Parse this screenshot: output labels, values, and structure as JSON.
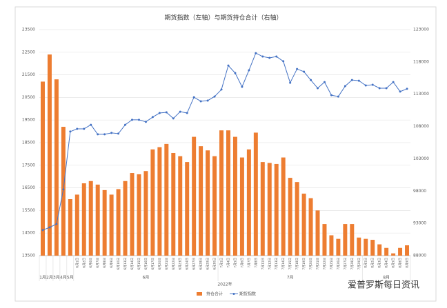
{
  "chart_data": {
    "type": "combo",
    "title": "期货指数（左轴）与期货持仓合计（右轴）",
    "categories": [
      null,
      null,
      null,
      null,
      null,
      "6月1日",
      "6月2日",
      "6月6日",
      "6月7日",
      "6月8日",
      "6月9日",
      "6月10日",
      "6月13日",
      "6月14日",
      "6月15日",
      "6月16日",
      "6月17日",
      "6月20日",
      "6月21日",
      "6月22日",
      "6月23日",
      "6月24日",
      "6月27日",
      "6月28日",
      "6月29日",
      "6月30日",
      "7月1日",
      "7月4日",
      "7月5日",
      "7月6日",
      "7月7日",
      "7月8日",
      "7月11日",
      "7月12日",
      "7月13日",
      "7月14日",
      "7月15日",
      "7月18日",
      "7月19日",
      "7月20日",
      "7月21日",
      "7月22日",
      "7月25日",
      "7月26日",
      "7月27日",
      "7月28日",
      "7月29日",
      "8月1日",
      "8月2日",
      "8月3日",
      "8月4日",
      "8月5日",
      "8月8日",
      "8月9日"
    ],
    "x_groups": [
      {
        "label": "1月",
        "count": 1
      },
      {
        "label": "2月",
        "count": 1
      },
      {
        "label": "3月",
        "count": 1
      },
      {
        "label": "4月",
        "count": 1
      },
      {
        "label": "5月",
        "count": 1
      },
      {
        "label": "6月",
        "count": 21
      },
      {
        "label": "7月",
        "count": 21
      },
      {
        "label": "8月",
        "count": 7
      }
    ],
    "x_supergroup": "2022年",
    "series": [
      {
        "name": "持仓合计",
        "type": "bar",
        "color": "#ed7d31",
        "axis": "y2",
        "values": [
          114950,
          119150,
          115300,
          107950,
          96750,
          97450,
          99200,
          99550,
          99000,
          98150,
          97450,
          98300,
          99550,
          100800,
          100600,
          101100,
          104450,
          104800,
          105300,
          103900,
          103400,
          102500,
          106400,
          104950,
          104300,
          103400,
          107400,
          107400,
          106400,
          103200,
          104450,
          107050,
          102500,
          102350,
          102200,
          103200,
          100050,
          99400,
          97600,
          96900,
          95000,
          92900,
          91150,
          90600,
          92900,
          92900,
          90800,
          90600,
          90450,
          89750,
          89200,
          88350,
          89200,
          89600
        ]
      },
      {
        "name": "期货指数",
        "type": "line",
        "color": "#4472c4",
        "values": [
          14630,
          14750,
          14900,
          16430,
          18990,
          19110,
          19110,
          19290,
          18870,
          18870,
          18930,
          18900,
          19290,
          19510,
          19510,
          19420,
          19630,
          19810,
          19840,
          19570,
          19870,
          19810,
          20510,
          20330,
          20360,
          20540,
          20850,
          21910,
          21580,
          20970,
          21700,
          22460,
          22310,
          22250,
          22310,
          22100,
          21150,
          21760,
          21640,
          21270,
          20910,
          21180,
          20600,
          20540,
          21000,
          21270,
          21240,
          21030,
          21060,
          20910,
          20910,
          21180,
          20760,
          20880
        ]
      }
    ],
    "ylim": [
      13500,
      23500
    ],
    "yticks": [
      13500,
      14500,
      15500,
      16500,
      17500,
      18500,
      19500,
      20500,
      21500,
      22500,
      23500
    ],
    "y2lim": [
      88000,
      123000
    ],
    "y2ticks": [
      88000,
      93000,
      98000,
      103000,
      108000,
      113000,
      118000,
      123000
    ],
    "grid": true,
    "legend": "bottom",
    "watermark": "爱普罗斯每日资讯"
  }
}
